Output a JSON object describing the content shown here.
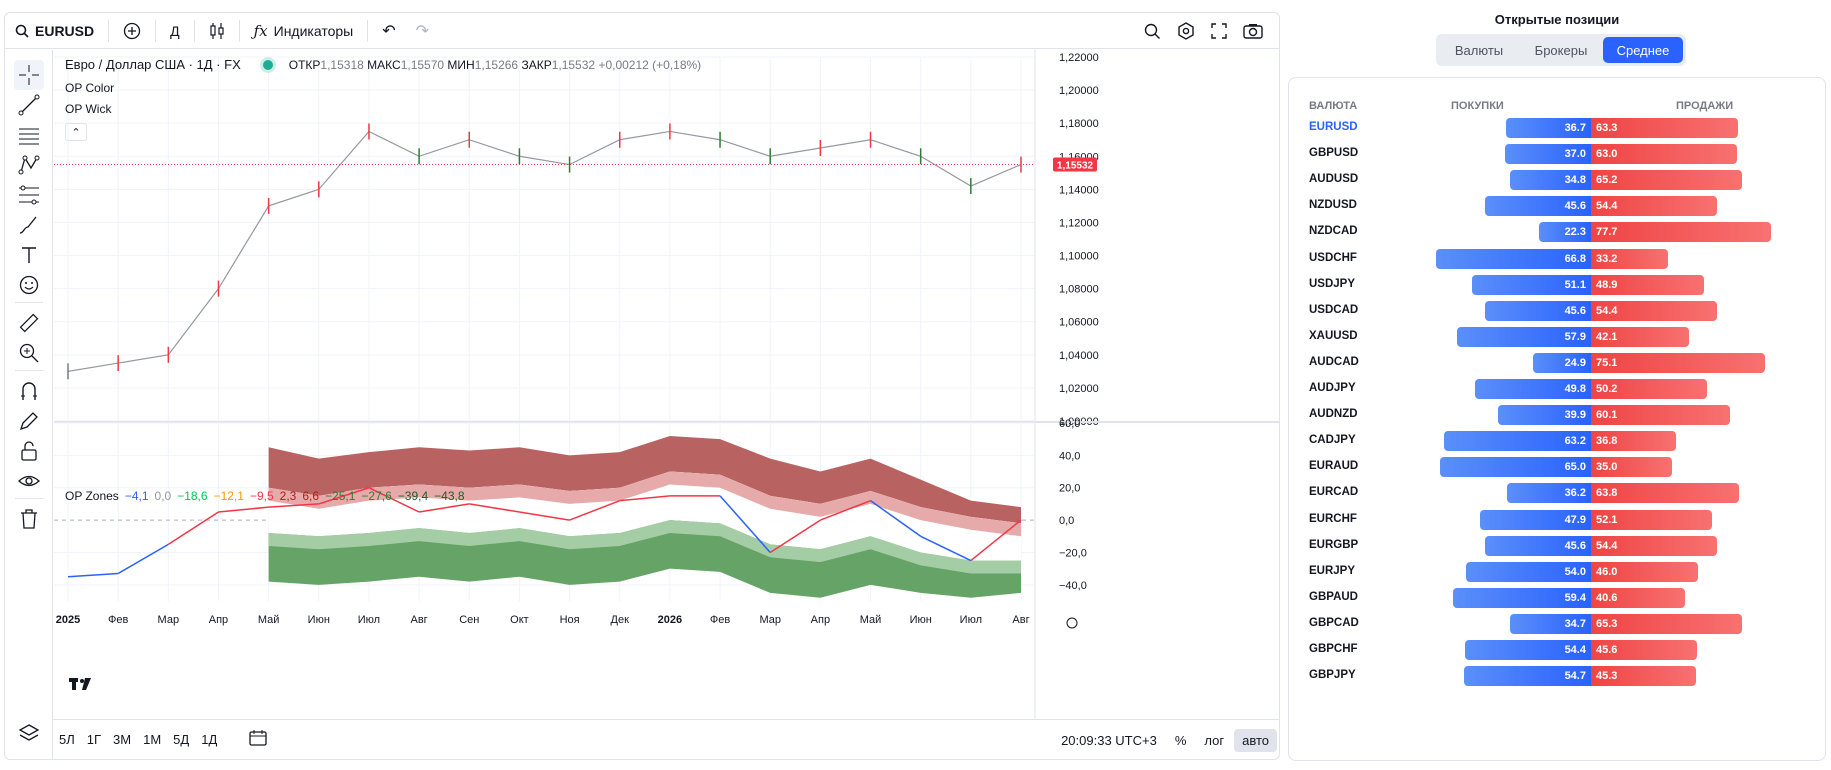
{
  "toolbar": {
    "symbol": "EURUSD",
    "interval": "Д",
    "indicators_label": "Индикаторы"
  },
  "legend": {
    "title": "Евро / Доллар США · 1Д · FX",
    "open_label": "ОТКР",
    "open": "1,15318",
    "high_label": "МАКС",
    "high": "1,15570",
    "low_label": "МИН",
    "low": "1,15266",
    "close_label": "ЗАКР",
    "close": "1,15532",
    "change": "+0,00212 (+0,18%)",
    "indicators": [
      "OP Color",
      "OP Wick"
    ],
    "collapse_icon": "chevron-up-icon"
  },
  "zones_legend": {
    "name": "OP Zones",
    "values": [
      {
        "text": "−4,1",
        "color": "#2962ff"
      },
      {
        "text": "0,0",
        "color": "#9598a1"
      },
      {
        "text": "−18,6",
        "color": "#00c853"
      },
      {
        "text": "−12,1",
        "color": "#ff9800"
      },
      {
        "text": "−9,5",
        "color": "#f23645"
      },
      {
        "text": "2,3",
        "color": "#b71c1c"
      },
      {
        "text": "6,6",
        "color": "#b71c1c"
      },
      {
        "text": "−25,1",
        "color": "#2e7d32"
      },
      {
        "text": "−27,6",
        "color": "#2e7d32"
      },
      {
        "text": "−39,4",
        "color": "#1b5e20"
      },
      {
        "text": "−43,8",
        "color": "#1b5e20"
      }
    ]
  },
  "chart_data": [
    {
      "type": "line",
      "name": "price",
      "ylim": [
        1.0,
        1.22
      ],
      "y_ticks": [
        "1,22000",
        "1,20000",
        "1,18000",
        "1,16000",
        "1,14000",
        "1,12000",
        "1,10000",
        "1,08000",
        "1,06000",
        "1,04000",
        "1,02000",
        "1,00000"
      ],
      "last_price": "1,15532",
      "x_ticks": [
        "2025",
        "Фев",
        "Мар",
        "Апр",
        "Май",
        "Июн",
        "Июл",
        "Авг",
        "Сен",
        "Окт",
        "Ноя",
        "Дек",
        "2026",
        "Фев",
        "Мар",
        "Апр",
        "Май",
        "Июн",
        "Июл",
        "Авг"
      ],
      "x": [
        0,
        1,
        2,
        3,
        4,
        5,
        6,
        7,
        8,
        9,
        10,
        11,
        12,
        13,
        14,
        15,
        16,
        17,
        18,
        19
      ],
      "values": [
        1.03,
        1.035,
        1.04,
        1.08,
        1.13,
        1.14,
        1.175,
        1.16,
        1.17,
        1.16,
        1.155,
        1.17,
        1.175,
        1.17,
        1.16,
        1.165,
        1.17,
        1.16,
        1.142,
        1.155
      ]
    },
    {
      "type": "area",
      "name": "OP Zones",
      "ylim": [
        -50,
        60
      ],
      "y_ticks": [
        "60,0",
        "40,0",
        "20,0",
        "0,0",
        "−20,0",
        "−40,0"
      ],
      "x": [
        0,
        1,
        2,
        3,
        4,
        5,
        6,
        7,
        8,
        9,
        10,
        11,
        12,
        13,
        14,
        15,
        16,
        17,
        18,
        19
      ],
      "oscillator": [
        -35,
        -33,
        -15,
        5,
        8,
        10,
        20,
        5,
        10,
        5,
        0,
        12,
        15,
        15,
        -20,
        0,
        12,
        -10,
        -25,
        0
      ],
      "upper_outer": [
        null,
        null,
        null,
        null,
        45,
        38,
        42,
        45,
        43,
        45,
        40,
        42,
        52,
        50,
        38,
        30,
        38,
        25,
        12,
        8
      ],
      "upper_inner": [
        null,
        null,
        null,
        null,
        20,
        15,
        20,
        22,
        20,
        22,
        18,
        20,
        30,
        28,
        15,
        10,
        18,
        8,
        2,
        -2
      ],
      "lower_inner": [
        null,
        null,
        null,
        null,
        -8,
        -10,
        -8,
        -5,
        -8,
        -5,
        -10,
        -8,
        0,
        -2,
        -15,
        -18,
        -10,
        -20,
        -25,
        -25
      ],
      "lower_outer": [
        null,
        null,
        null,
        null,
        -38,
        -40,
        -38,
        -35,
        -38,
        -35,
        -40,
        -38,
        -30,
        -32,
        -45,
        -48,
        -40,
        -45,
        -48,
        -45
      ]
    }
  ],
  "bottombar": {
    "ranges": [
      "5Л",
      "1Г",
      "3М",
      "1М",
      "5Д",
      "1Д"
    ],
    "time": "20:09:33 UTC+3",
    "percent": "%",
    "log": "лог",
    "auto": "авто"
  },
  "positions": {
    "title": "Открытые позиции",
    "tabs": [
      "Валюты",
      "Брокеры",
      "Среднее"
    ],
    "active_tab": 2,
    "headers": {
      "currency": "ВАЛЮТА",
      "buy": "ПОКУПКИ",
      "sell": "ПРОДАЖИ"
    },
    "rows": [
      {
        "name": "EURUSD",
        "buy": 36.7,
        "sell": 63.3,
        "buy_text": "36.7",
        "sell_text": "63.3"
      },
      {
        "name": "GBPUSD",
        "buy": 37.0,
        "sell": 63.0,
        "buy_text": "37.0",
        "sell_text": "63.0"
      },
      {
        "name": "AUDUSD",
        "buy": 34.8,
        "sell": 65.2,
        "buy_text": "34.8",
        "sell_text": "65.2"
      },
      {
        "name": "NZDUSD",
        "buy": 45.6,
        "sell": 54.4,
        "buy_text": "45.6",
        "sell_text": "54.4"
      },
      {
        "name": "NZDCAD",
        "buy": 22.3,
        "sell": 77.7,
        "buy_text": "22.3",
        "sell_text": "77.7"
      },
      {
        "name": "USDCHF",
        "buy": 66.8,
        "sell": 33.2,
        "buy_text": "66.8",
        "sell_text": "33.2"
      },
      {
        "name": "USDJPY",
        "buy": 51.1,
        "sell": 48.9,
        "buy_text": "51.1",
        "sell_text": "48.9"
      },
      {
        "name": "USDCAD",
        "buy": 45.6,
        "sell": 54.4,
        "buy_text": "45.6",
        "sell_text": "54.4"
      },
      {
        "name": "XAUUSD",
        "buy": 57.9,
        "sell": 42.1,
        "buy_text": "57.9",
        "sell_text": "42.1"
      },
      {
        "name": "AUDCAD",
        "buy": 24.9,
        "sell": 75.1,
        "buy_text": "24.9",
        "sell_text": "75.1"
      },
      {
        "name": "AUDJPY",
        "buy": 49.8,
        "sell": 50.2,
        "buy_text": "49.8",
        "sell_text": "50.2"
      },
      {
        "name": "AUDNZD",
        "buy": 39.9,
        "sell": 60.1,
        "buy_text": "39.9",
        "sell_text": "60.1"
      },
      {
        "name": "CADJPY",
        "buy": 63.2,
        "sell": 36.8,
        "buy_text": "63.2",
        "sell_text": "36.8"
      },
      {
        "name": "EURAUD",
        "buy": 65.0,
        "sell": 35.0,
        "buy_text": "65.0",
        "sell_text": "35.0"
      },
      {
        "name": "EURCAD",
        "buy": 36.2,
        "sell": 63.8,
        "buy_text": "36.2",
        "sell_text": "63.8"
      },
      {
        "name": "EURCHF",
        "buy": 47.9,
        "sell": 52.1,
        "buy_text": "47.9",
        "sell_text": "52.1"
      },
      {
        "name": "EURGBP",
        "buy": 45.6,
        "sell": 54.4,
        "buy_text": "45.6",
        "sell_text": "54.4"
      },
      {
        "name": "EURJPY",
        "buy": 54.0,
        "sell": 46.0,
        "buy_text": "54.0",
        "sell_text": "46.0"
      },
      {
        "name": "GBPAUD",
        "buy": 59.4,
        "sell": 40.6,
        "buy_text": "59.4",
        "sell_text": "40.6"
      },
      {
        "name": "GBPCAD",
        "buy": 34.7,
        "sell": 65.3,
        "buy_text": "34.7",
        "sell_text": "65.3"
      },
      {
        "name": "GBPCHF",
        "buy": 54.4,
        "sell": 45.6,
        "buy_text": "54.4",
        "sell_text": "45.6"
      },
      {
        "name": "GBPJPY",
        "buy": 54.7,
        "sell": 45.3,
        "buy_text": "54.7",
        "sell_text": "45.3"
      }
    ]
  },
  "colors": {
    "accent": "#2962ff",
    "buy": "#2962ff",
    "sell": "#ef4444",
    "upper_zone_dark": "#b45a5a",
    "upper_zone_light": "#e6a5a5",
    "lower_zone_dark": "#5e9e5e",
    "lower_zone_light": "#a9d0a9",
    "price_line": "#f23645"
  }
}
